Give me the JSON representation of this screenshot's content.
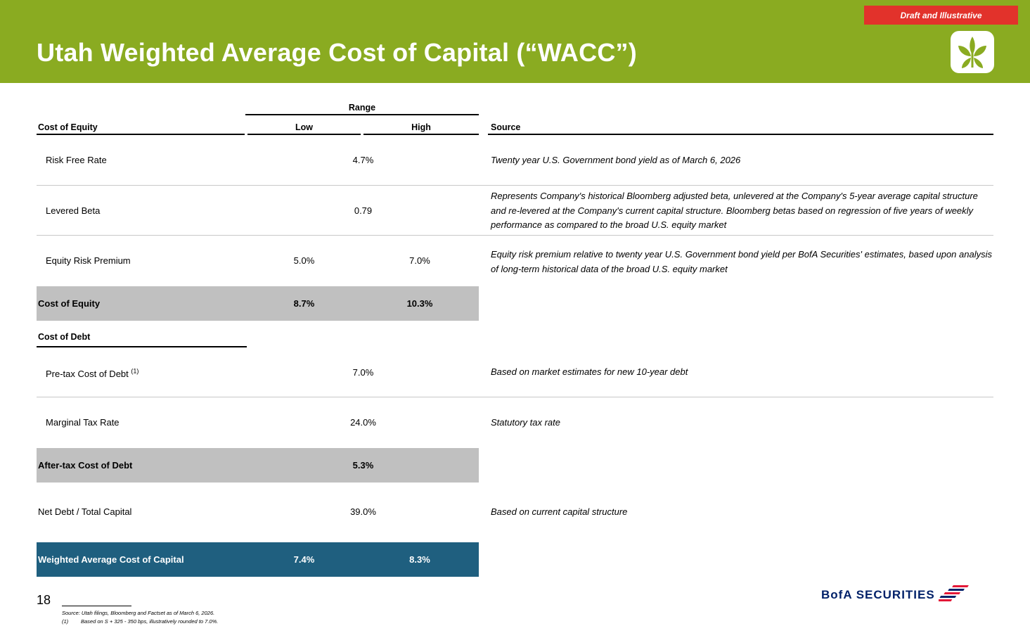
{
  "header": {
    "title": "Utah Weighted Average Cost of Capital (“WACC”)",
    "draft_label": "Draft and Illustrative",
    "accent_color": "#8aab21",
    "badge_color": "#e2322b",
    "logo_icon": "leaf-logo-icon"
  },
  "table": {
    "range_label": "Range",
    "equity_section_label": "Cost of Equity",
    "low_label": "Low",
    "high_label": "High",
    "source_label": "Source",
    "debt_section_label": "Cost of Debt",
    "rows": {
      "risk_free": {
        "label": "Risk Free Rate",
        "value": "4.7%",
        "source": "Twenty year U.S. Government bond yield as of March 6, 2026"
      },
      "levered_beta": {
        "label": "Levered Beta",
        "value": "0.79",
        "source": "Represents Company's historical Bloomberg adjusted beta, unlevered at the Company's 5-year average capital structure and re-levered at the Company's current capital structure. Bloomberg betas based on regression of five years of weekly performance as compared to the broad U.S. equity market"
      },
      "erp": {
        "label": "Equity Risk Premium",
        "low": "5.0%",
        "high": "7.0%",
        "source": "Equity risk premium relative to twenty year U.S. Government bond yield per BofA Securities' estimates, based upon analysis of long-term historical data of the broad U.S. equity market"
      },
      "cost_of_equity": {
        "label": "Cost of Equity",
        "low": "8.7%",
        "high": "10.3%"
      },
      "pretax_debt": {
        "label": "Pre-tax Cost of Debt",
        "footnote_ref": "(1)",
        "value": "7.0%",
        "source": "Based on market estimates for new 10-year debt"
      },
      "tax_rate": {
        "label": "Marginal Tax Rate",
        "value": "24.0%",
        "source": "Statutory tax rate"
      },
      "aftertax_debt": {
        "label": "After-tax Cost of Debt",
        "value": "5.3%"
      },
      "net_debt": {
        "label": "Net Debt / Total Capital",
        "value": "39.0%",
        "source": "Based on current capital structure"
      },
      "wacc": {
        "label": "Weighted Average Cost of Capital",
        "low": "7.4%",
        "high": "8.3%"
      }
    },
    "band_color": "#c0c0c0",
    "wacc_color": "#1f5f7f"
  },
  "footer": {
    "page_number": "18",
    "source_note": "Source: Utah filings, Bloomberg and Factset as of March 6, 2026.",
    "note_number": "(1)",
    "note_text": "Based on S + 325 - 350 bps, illustratively rounded to 7.0%.",
    "brand": "BofA SECURITIES",
    "brand_icon": "bofa-flag-icon"
  }
}
